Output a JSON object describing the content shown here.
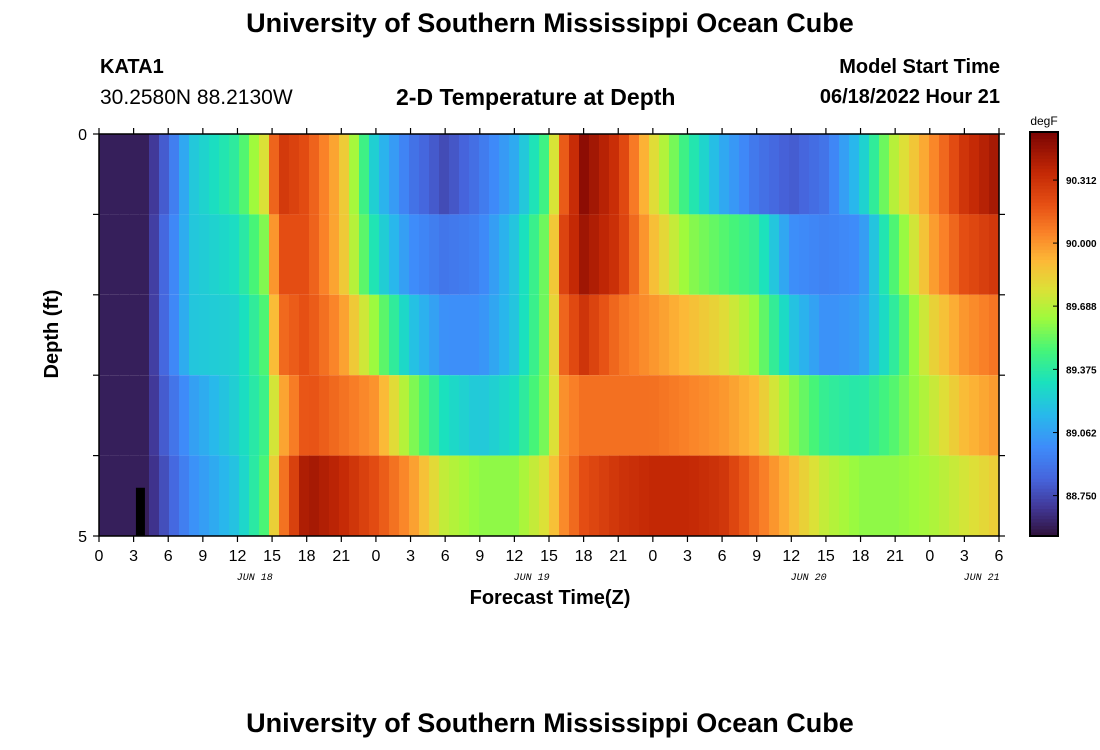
{
  "header": {
    "title": "University of Southern Mississippi Ocean Cube",
    "station": "KATA1",
    "coords": "30.2580N  88.2130W",
    "plot_title": "2-D Temperature at Depth",
    "start_label": "Model Start Time",
    "start_value": "06/18/2022 Hour 21"
  },
  "footer": {
    "title": "University of Southern Mississippi Ocean Cube"
  },
  "chart_data": {
    "type": "heatmap",
    "title": "2-D Temperature at Depth",
    "xlabel": "Forecast Time(Z)",
    "ylabel": "Depth (ft)",
    "x_tick_labels": [
      "0",
      "3",
      "6",
      "9",
      "12",
      "15",
      "18",
      "21",
      "0",
      "3",
      "6",
      "9",
      "12",
      "15",
      "18",
      "21",
      "0",
      "3",
      "6",
      "9",
      "12",
      "15",
      "18",
      "21",
      "0",
      "3",
      "6"
    ],
    "date_labels": [
      {
        "text": "JUN 18",
        "tick_index": 4.5
      },
      {
        "text": "JUN 19",
        "tick_index": 12.5
      },
      {
        "text": "JUN 20",
        "tick_index": 20.5
      },
      {
        "text": "JUN 21",
        "tick_index": 25.5
      }
    ],
    "y_tick_labels": [
      "0",
      "5"
    ],
    "y_range": [
      0,
      5
    ],
    "x_range_hours": [
      0,
      78
    ],
    "colorbar": {
      "unit": "degF",
      "tick_values": [
        "90.312",
        "90.000",
        "89.688",
        "89.375",
        "89.062",
        "88.750"
      ],
      "range": [
        88.55,
        90.55
      ]
    },
    "depth_rows": [
      0.5,
      1.5,
      2.5,
      3.5,
      4.5
    ],
    "series": [
      {
        "values": [
          [
            0,
            88.6
          ],
          [
            4,
            88.6
          ],
          [
            6,
            88.85
          ],
          [
            8,
            89.2
          ],
          [
            12,
            89.4
          ],
          [
            14.5,
            89.8
          ],
          [
            15.5,
            90.3
          ],
          [
            18,
            90.2
          ],
          [
            21,
            89.9
          ],
          [
            24,
            89.2
          ],
          [
            27,
            88.9
          ],
          [
            30,
            88.75
          ],
          [
            33,
            88.9
          ],
          [
            36,
            89.1
          ],
          [
            39,
            89.5
          ],
          [
            40,
            90.1
          ],
          [
            42,
            90.5
          ],
          [
            45,
            90.3
          ],
          [
            48,
            89.8
          ],
          [
            51,
            89.4
          ],
          [
            54,
            89.1
          ],
          [
            57,
            88.9
          ],
          [
            60,
            88.8
          ],
          [
            63,
            88.9
          ],
          [
            66,
            89.2
          ],
          [
            69,
            89.7
          ],
          [
            72,
            90.0
          ],
          [
            75,
            90.3
          ],
          [
            78,
            90.45
          ]
        ]
      },
      {
        "values": [
          [
            0,
            88.6
          ],
          [
            4,
            88.6
          ],
          [
            6,
            88.9
          ],
          [
            8,
            89.2
          ],
          [
            12,
            89.3
          ],
          [
            14.5,
            89.6
          ],
          [
            15.5,
            90.2
          ],
          [
            18,
            90.2
          ],
          [
            21,
            89.9
          ],
          [
            24,
            89.3
          ],
          [
            27,
            89.0
          ],
          [
            30,
            88.9
          ],
          [
            33,
            88.95
          ],
          [
            36,
            89.2
          ],
          [
            39,
            89.6
          ],
          [
            40,
            90.2
          ],
          [
            42,
            90.45
          ],
          [
            45,
            90.3
          ],
          [
            48,
            89.9
          ],
          [
            51,
            89.6
          ],
          [
            54,
            89.5
          ],
          [
            57,
            89.4
          ],
          [
            60,
            89.0
          ],
          [
            63,
            88.95
          ],
          [
            66,
            89.0
          ],
          [
            69,
            89.5
          ],
          [
            72,
            89.95
          ],
          [
            75,
            90.2
          ],
          [
            78,
            90.3
          ]
        ]
      },
      {
        "values": [
          [
            0,
            88.6
          ],
          [
            4,
            88.6
          ],
          [
            6,
            88.9
          ],
          [
            8,
            89.2
          ],
          [
            12,
            89.25
          ],
          [
            14.5,
            89.5
          ],
          [
            15.5,
            90.1
          ],
          [
            18,
            90.2
          ],
          [
            21,
            90.0
          ],
          [
            24,
            89.6
          ],
          [
            27,
            89.2
          ],
          [
            30,
            89.0
          ],
          [
            33,
            89.0
          ],
          [
            36,
            89.2
          ],
          [
            39,
            89.6
          ],
          [
            40,
            90.1
          ],
          [
            42,
            90.3
          ],
          [
            45,
            90.1
          ],
          [
            48,
            90.0
          ],
          [
            51,
            89.9
          ],
          [
            54,
            89.8
          ],
          [
            57,
            89.6
          ],
          [
            60,
            89.2
          ],
          [
            63,
            89.0
          ],
          [
            66,
            89.05
          ],
          [
            69,
            89.4
          ],
          [
            72,
            89.8
          ],
          [
            75,
            90.0
          ],
          [
            78,
            90.1
          ]
        ]
      },
      {
        "values": [
          [
            0,
            88.6
          ],
          [
            4,
            88.6
          ],
          [
            6,
            88.85
          ],
          [
            8,
            89.05
          ],
          [
            12,
            89.25
          ],
          [
            14.5,
            89.45
          ],
          [
            15.5,
            89.9
          ],
          [
            18,
            90.2
          ],
          [
            21,
            90.1
          ],
          [
            24,
            90.0
          ],
          [
            27,
            89.6
          ],
          [
            30,
            89.3
          ],
          [
            33,
            89.2
          ],
          [
            36,
            89.3
          ],
          [
            39,
            89.6
          ],
          [
            40,
            90.0
          ],
          [
            42,
            90.1
          ],
          [
            45,
            90.1
          ],
          [
            48,
            90.1
          ],
          [
            51,
            90.05
          ],
          [
            54,
            90.0
          ],
          [
            57,
            89.9
          ],
          [
            60,
            89.6
          ],
          [
            63,
            89.4
          ],
          [
            66,
            89.35
          ],
          [
            69,
            89.5
          ],
          [
            72,
            89.7
          ],
          [
            75,
            89.9
          ],
          [
            78,
            90.0
          ]
        ]
      },
      {
        "values": [
          [
            0,
            88.6
          ],
          [
            4,
            88.6
          ],
          [
            6,
            88.8
          ],
          [
            8,
            89.0
          ],
          [
            12,
            89.2
          ],
          [
            14.5,
            89.5
          ],
          [
            15.5,
            90.0
          ],
          [
            18,
            90.45
          ],
          [
            21,
            90.35
          ],
          [
            24,
            90.2
          ],
          [
            27,
            90.0
          ],
          [
            30,
            89.7
          ],
          [
            33,
            89.6
          ],
          [
            36,
            89.6
          ],
          [
            39,
            89.8
          ],
          [
            40,
            90.0
          ],
          [
            42,
            90.2
          ],
          [
            45,
            90.3
          ],
          [
            48,
            90.35
          ],
          [
            51,
            90.35
          ],
          [
            54,
            90.3
          ],
          [
            57,
            90.1
          ],
          [
            60,
            89.9
          ],
          [
            63,
            89.7
          ],
          [
            66,
            89.6
          ],
          [
            69,
            89.6
          ],
          [
            72,
            89.65
          ],
          [
            75,
            89.75
          ],
          [
            78,
            89.85
          ]
        ]
      }
    ]
  }
}
